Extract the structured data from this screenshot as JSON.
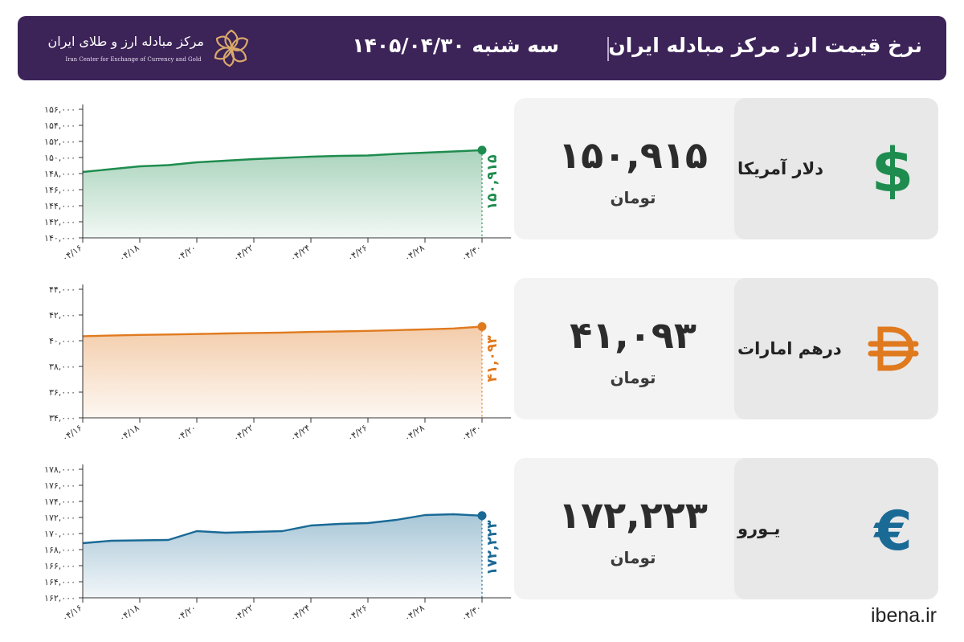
{
  "header": {
    "title": "نرخ قیمت ارز مرکز مبادله ایران",
    "date": "سه شنبه ۱۴۰۵/۰۴/۳۰",
    "logo_fa": "مرکز مبادله ارز و طلای ایران",
    "logo_en": "Iran Center for Exchange of Currency and Gold"
  },
  "colors": {
    "header_bg": "#3c2358",
    "usd": "#1e8c4e",
    "aed": "#e07a1f",
    "eur": "#1a6a96"
  },
  "cards": [
    {
      "name": "دلار آمریکا",
      "value": "۱۵۰,۹۱۵",
      "unit": "تومان",
      "icon": "dollar-sign-icon"
    },
    {
      "name": "درهم امارات",
      "value": "۴۱,۰۹۳",
      "unit": "تومان",
      "icon": "dirham-sign-icon"
    },
    {
      "name": "یـورو",
      "value": "۱۷۲,۲۲۳",
      "unit": "تومان",
      "icon": "euro-sign-icon"
    }
  ],
  "site": "ibena.ir",
  "chart_data": [
    {
      "type": "area",
      "series_name": "دلار آمریکا",
      "x": [
        "۰۴/۱۶",
        "۰۴/۱۷",
        "۰۴/۱۸",
        "۰۴/۱۹",
        "۰۴/۲۰",
        "۰۴/۲۱",
        "۰۴/۲۲",
        "۰۴/۲۳",
        "۰۴/۲۴",
        "۰۴/۲۵",
        "۰۴/۲۶",
        "۰۴/۲۷",
        "۰۴/۲۸",
        "۰۴/۲۹",
        "۰۴/۳۰"
      ],
      "x_tick_labels": [
        "۰۴/۱۶",
        "۰۴/۱۸",
        "۰۴/۲۰",
        "۰۴/۲۲",
        "۰۴/۲۴",
        "۰۴/۲۶",
        "۰۴/۲۸",
        "۰۴/۳۰"
      ],
      "values": [
        148200,
        148550,
        148900,
        149050,
        149400,
        149600,
        149800,
        149950,
        150100,
        150200,
        150250,
        150450,
        150600,
        150750,
        150915
      ],
      "ylim": [
        140000,
        156000
      ],
      "y_ticks": [
        140000,
        142000,
        144000,
        146000,
        148000,
        150000,
        152000,
        154000,
        156000
      ],
      "y_tick_labels": [
        "۱۴۰,۰۰۰",
        "۱۴۲,۰۰۰",
        "۱۴۴,۰۰۰",
        "۱۴۶,۰۰۰",
        "۱۴۸,۰۰۰",
        "۱۵۰,۰۰۰",
        "۱۵۲,۰۰۰",
        "۱۵۴,۰۰۰",
        "۱۵۶,۰۰۰"
      ],
      "end_label": "۱۵۰,۹۱۵",
      "grid": false
    },
    {
      "type": "area",
      "series_name": "درهم امارات",
      "x": [
        "۰۴/۱۶",
        "۰۴/۱۷",
        "۰۴/۱۸",
        "۰۴/۱۹",
        "۰۴/۲۰",
        "۰۴/۲۱",
        "۰۴/۲۲",
        "۰۴/۲۳",
        "۰۴/۲۴",
        "۰۴/۲۵",
        "۰۴/۲۶",
        "۰۴/۲۷",
        "۰۴/۲۸",
        "۰۴/۲۹",
        "۰۴/۳۰"
      ],
      "x_tick_labels": [
        "۰۴/۱۶",
        "۰۴/۱۸",
        "۰۴/۲۰",
        "۰۴/۲۲",
        "۰۴/۲۴",
        "۰۴/۲۶",
        "۰۴/۲۸",
        "۰۴/۳۰"
      ],
      "values": [
        40350,
        40400,
        40450,
        40480,
        40520,
        40560,
        40600,
        40630,
        40680,
        40720,
        40760,
        40820,
        40880,
        40950,
        41093
      ],
      "ylim": [
        34000,
        44000
      ],
      "y_ticks": [
        34000,
        36000,
        38000,
        40000,
        42000,
        44000
      ],
      "y_tick_labels": [
        "۳۴,۰۰۰",
        "۳۶,۰۰۰",
        "۳۸,۰۰۰",
        "۴۰,۰۰۰",
        "۴۲,۰۰۰",
        "۴۴,۰۰۰"
      ],
      "end_label": "۴۱,۰۹۳",
      "grid": false
    },
    {
      "type": "area",
      "series_name": "یـورو",
      "x": [
        "۰۴/۱۶",
        "۰۴/۱۷",
        "۰۴/۱۸",
        "۰۴/۱۹",
        "۰۴/۲۰",
        "۰۴/۲۱",
        "۰۴/۲۲",
        "۰۴/۲۳",
        "۰۴/۲۴",
        "۰۴/۲۵",
        "۰۴/۲۶",
        "۰۴/۲۷",
        "۰۴/۲۸",
        "۰۴/۲۹",
        "۰۴/۳۰"
      ],
      "x_tick_labels": [
        "۰۴/۱۶",
        "۰۴/۱۸",
        "۰۴/۲۰",
        "۰۴/۲۲",
        "۰۴/۲۴",
        "۰۴/۲۶",
        "۰۴/۲۸",
        "۰۴/۳۰"
      ],
      "values": [
        168800,
        169100,
        169150,
        169200,
        170300,
        170100,
        170200,
        170300,
        171000,
        171200,
        171300,
        171700,
        172300,
        172400,
        172223
      ],
      "ylim": [
        162000,
        178000
      ],
      "y_ticks": [
        162000,
        164000,
        166000,
        168000,
        170000,
        172000,
        174000,
        176000,
        178000
      ],
      "y_tick_labels": [
        "۱۶۲,۰۰۰",
        "۱۶۴,۰۰۰",
        "۱۶۶,۰۰۰",
        "۱۶۸,۰۰۰",
        "۱۷۰,۰۰۰",
        "۱۷۲,۰۰۰",
        "۱۷۴,۰۰۰",
        "۱۷۶,۰۰۰",
        "۱۷۸,۰۰۰"
      ],
      "end_label": "۱۷۲,۲۲۳",
      "grid": false
    }
  ]
}
